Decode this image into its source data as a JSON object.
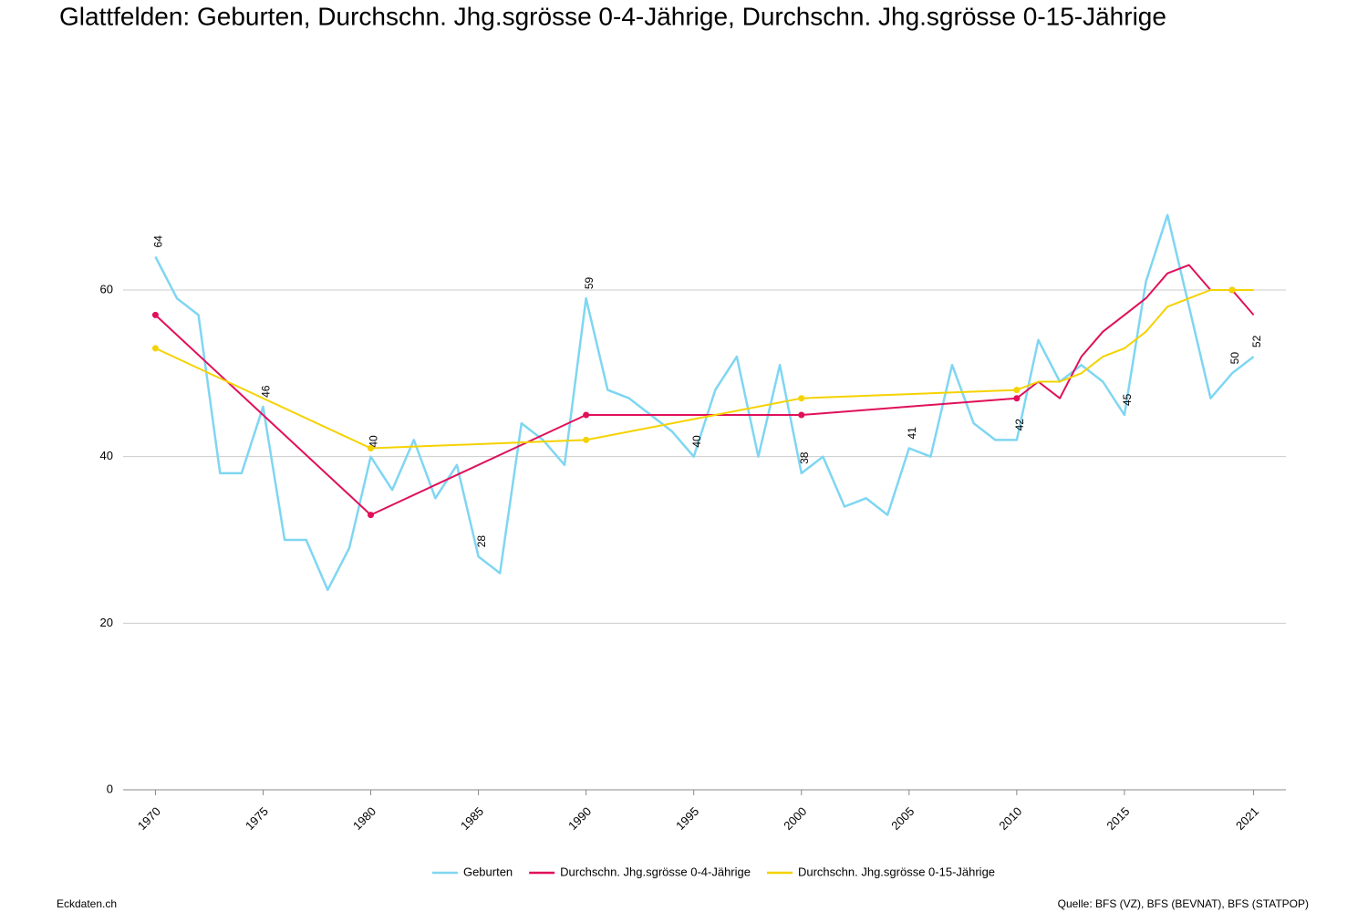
{
  "chart_data": {
    "type": "line",
    "title": "Glattfelden: Geburten, Durchschn. Jhg.sgrösse 0-4-Jährige, Durchschn. Jhg.sgrösse 0-15-Jährige",
    "footer_left": "Eckdaten.ch",
    "footer_right": "Quelle: BFS (VZ), BFS (BEVNAT), BFS (STATPOP)",
    "xlim": [
      1968.5,
      2022.5
    ],
    "xticks": [
      1970,
      1975,
      1980,
      1985,
      1990,
      1995,
      2000,
      2005,
      2010,
      2015,
      2021
    ],
    "ylim": [
      0,
      75
    ],
    "yticks": [
      0,
      20,
      40,
      60
    ],
    "grid": true,
    "legend": "bottom",
    "series": [
      {
        "name": "Geburten",
        "color": "#7fd6f2",
        "x": [
          1970,
          1971,
          1972,
          1973,
          1974,
          1975,
          1976,
          1977,
          1978,
          1979,
          1980,
          1981,
          1982,
          1983,
          1984,
          1985,
          1986,
          1987,
          1988,
          1989,
          1990,
          1991,
          1992,
          1993,
          1994,
          1995,
          1996,
          1997,
          1998,
          1999,
          2000,
          2001,
          2002,
          2003,
          2004,
          2005,
          2006,
          2007,
          2008,
          2009,
          2010,
          2011,
          2012,
          2013,
          2014,
          2015,
          2016,
          2017,
          2018,
          2019,
          2020,
          2021
        ],
        "values": [
          64,
          59,
          57,
          38,
          38,
          46,
          30,
          30,
          24,
          29,
          40,
          36,
          42,
          35,
          39,
          28,
          26,
          44,
          42,
          39,
          59,
          48,
          47,
          45,
          43,
          40,
          48,
          52,
          40,
          51,
          38,
          40,
          34,
          35,
          33,
          41,
          40,
          51,
          44,
          42,
          42,
          54,
          49,
          51,
          49,
          45,
          61,
          69,
          58,
          47,
          50,
          52
        ]
      },
      {
        "name": "Durchschn. Jhg.sgrösse 0-4-Jährige",
        "color": "#e0105a",
        "x": [
          1970,
          1980,
          1990,
          2000,
          2010,
          2011,
          2012,
          2013,
          2014,
          2015,
          2016,
          2017,
          2018,
          2019,
          2020,
          2021
        ],
        "values": [
          57,
          33,
          45,
          45,
          47,
          49,
          47,
          52,
          55,
          57,
          59,
          62,
          63,
          60,
          60,
          57
        ]
      },
      {
        "name": "Durchschn. Jhg.sgrösse 0-15-Jährige",
        "color": "#f5d200",
        "x": [
          1970,
          1980,
          1990,
          2000,
          2010,
          2011,
          2012,
          2013,
          2014,
          2015,
          2016,
          2017,
          2018,
          2019,
          2020,
          2021
        ],
        "values": [
          53,
          41,
          42,
          47,
          48,
          49,
          49,
          50,
          52,
          53,
          55,
          58,
          59,
          60,
          60,
          60
        ]
      }
    ]
  }
}
